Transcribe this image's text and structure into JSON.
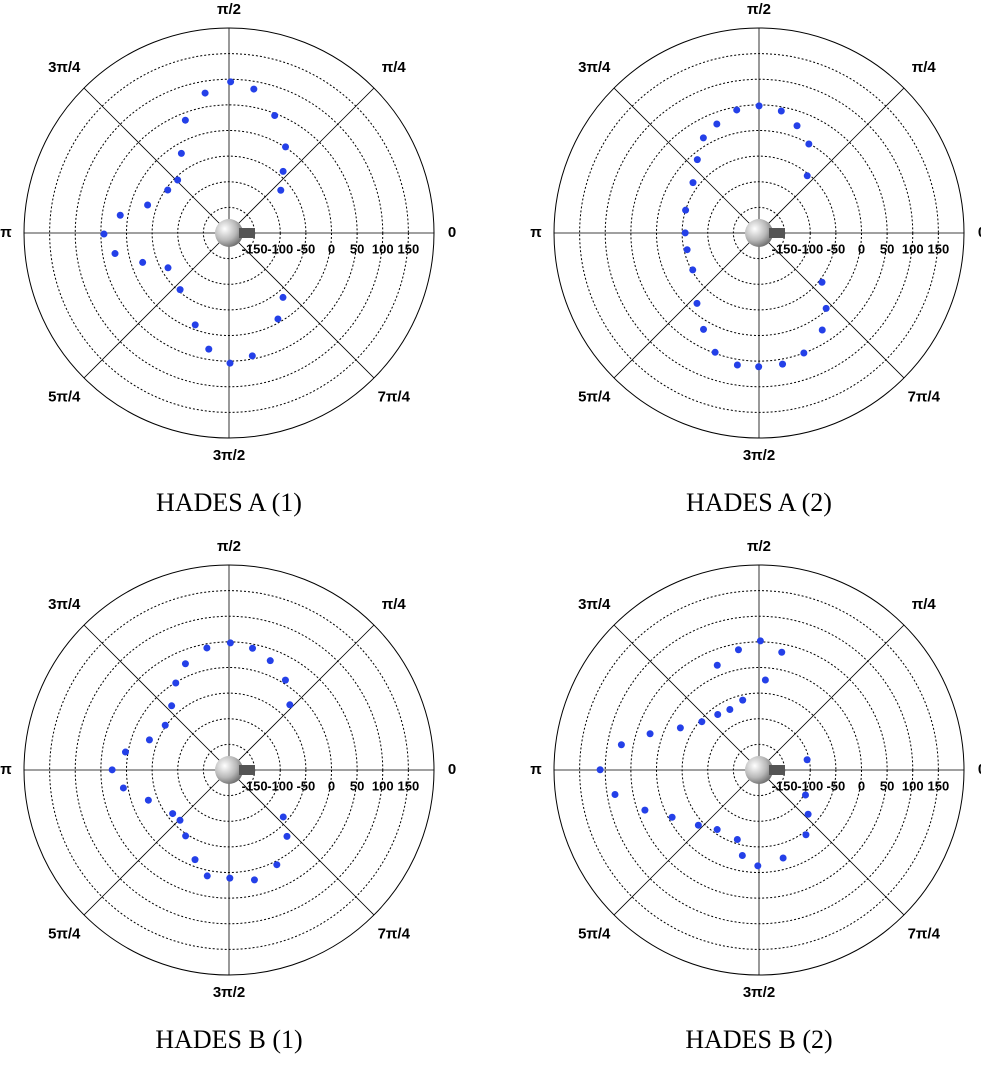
{
  "chart_data": [
    {
      "type": "polar",
      "title": "HADES A (1)",
      "rlim": [
        -200,
        200
      ],
      "rticks": [
        -150,
        -100,
        -50,
        0,
        50,
        100,
        150
      ],
      "thetaticks": [
        0,
        {
          "value": 0.785398,
          "label": "π/4"
        },
        {
          "value": 1.570796,
          "label": "π/2"
        },
        {
          "value": 2.356194,
          "label": "3π/4"
        },
        {
          "value": 3.141593,
          "label": "π"
        },
        {
          "value": 3.926991,
          "label": "5π/4"
        },
        {
          "value": 4.712389,
          "label": "3π/2"
        },
        {
          "value": 5.497787,
          "label": "7π/4"
        }
      ],
      "series": [
        {
          "color": "#2440e8",
          "theta": [
            1.56,
            1.74,
            1.4,
            1.94,
            1.2,
            2.11,
            0.99,
            2.34,
            0.85,
            2.53,
            2.81,
            2.98,
            3.15,
            3.32,
            3.47,
            3.66,
            4.0,
            4.36,
            4.54,
            4.72,
            4.9,
            5.23,
            5.41,
            0.69
          ],
          "r": [
            95,
            77,
            85,
            36,
            46,
            -19,
            1,
            -56,
            -40,
            -54,
            -32,
            15,
            44,
            26,
            -22,
            -63,
            -54,
            -9,
            30,
            54,
            44,
            -7,
            -36,
            -69
          ]
        }
      ]
    },
    {
      "type": "polar",
      "title": "HADES A (2)",
      "rlim": [
        -200,
        200
      ],
      "rticks": [
        -150,
        -100,
        -50,
        0,
        50,
        100,
        150
      ],
      "thetaticks": [
        0,
        {
          "value": 0.785398,
          "label": "π/4"
        },
        {
          "value": 1.570796,
          "label": "π/2"
        },
        {
          "value": 2.356194,
          "label": "3π/4"
        },
        {
          "value": 3.141593,
          "label": "π"
        },
        {
          "value": 3.926991,
          "label": "5π/4"
        },
        {
          "value": 4.712389,
          "label": "3π/2"
        },
        {
          "value": 5.497787,
          "label": "7π/4"
        }
      ],
      "series": [
        {
          "color": "#2440e8",
          "theta": [
            1.57,
            1.75,
            1.39,
            1.94,
            1.23,
            2.1,
            1.06,
            2.27,
            0.87,
            2.49,
            2.84,
            3.14,
            3.37,
            3.65,
            3.99,
            4.19,
            4.36,
            4.55,
            4.71,
            4.89,
            5.07,
            5.29,
            5.44,
            5.62
          ],
          "r": [
            48,
            44,
            42,
            28,
            22,
            15,
            -1,
            -13,
            -54,
            -38,
            -50,
            -56,
            -56,
            -52,
            -17,
            17,
            48,
            61,
            61,
            60,
            50,
            26,
            -3,
            -44
          ]
        }
      ]
    },
    {
      "type": "polar",
      "title": "HADES B (1)",
      "rlim": [
        -200,
        200
      ],
      "rticks": [
        -150,
        -100,
        -50,
        0,
        50,
        100,
        150
      ],
      "thetaticks": [
        0,
        {
          "value": 0.785398,
          "label": "π/4"
        },
        {
          "value": 1.570796,
          "label": "π/2"
        },
        {
          "value": 2.356194,
          "label": "3π/4"
        },
        {
          "value": 3.141593,
          "label": "π"
        },
        {
          "value": 3.926991,
          "label": "5π/4"
        },
        {
          "value": 4.712389,
          "label": "3π/2"
        },
        {
          "value": 5.497787,
          "label": "7π/4"
        }
      ],
      "series": [
        {
          "color": "#2440e8",
          "theta": [
            1.56,
            1.75,
            1.38,
            1.96,
            1.21,
            2.12,
            1.01,
            2.3,
            0.82,
            2.53,
            2.78,
            2.97,
            3.14,
            3.31,
            3.5,
            3.8,
            3.94,
            4.13,
            4.35,
            4.51,
            4.72,
            4.94,
            5.18,
            5.43,
            5.57
          ],
          "r": [
            48,
            42,
            42,
            24,
            28,
            -1,
            7,
            -32,
            -26,
            -48,
            -34,
            5,
            28,
            9,
            -32,
            -61,
            -63,
            -46,
            -13,
            11,
            11,
            20,
            7,
            -28,
            -60
          ]
        }
      ]
    },
    {
      "type": "polar",
      "title": "HADES B (2)",
      "rlim": [
        -200,
        200
      ],
      "rticks": [
        -150,
        -100,
        -50,
        0,
        50,
        100,
        150
      ],
      "thetaticks": [
        0,
        {
          "value": 0.785398,
          "label": "π/4"
        },
        {
          "value": 1.570796,
          "label": "π/2"
        },
        {
          "value": 2.356194,
          "label": "3π/4"
        },
        {
          "value": 3.141593,
          "label": "π"
        },
        {
          "value": 3.926991,
          "label": "5π/4"
        },
        {
          "value": 4.712389,
          "label": "3π/2"
        },
        {
          "value": 5.497787,
          "label": "7π/4"
        }
      ],
      "series": [
        {
          "color": "#2440e8",
          "theta": [
            1.56,
            1.74,
            1.38,
            1.95,
            1.5,
            1.8,
            2.02,
            2.21,
            2.44,
            2.65,
            2.82,
            2.96,
            3.14,
            3.31,
            3.48,
            3.64,
            3.88,
            4.1,
            4.41,
            4.52,
            4.7,
            4.98,
            5.34,
            5.55,
            5.79,
            0.21
          ],
          "r": [
            52,
            38,
            34,
            20,
            -24,
            -60,
            -69,
            -65,
            -54,
            -26,
            24,
            73,
            110,
            85,
            36,
            -7,
            -40,
            -58,
            -58,
            -30,
            -13,
            -22,
            -44,
            -71,
            -97,
            -104
          ]
        }
      ]
    }
  ]
}
